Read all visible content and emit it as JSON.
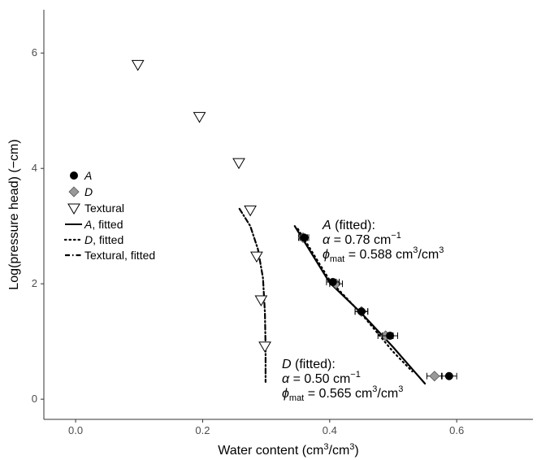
{
  "chart_data": {
    "type": "scatter",
    "title": "",
    "xlabel": {
      "prefix": "Water content (cm",
      "sup1": "3",
      "mid": "/cm",
      "sup2": "3",
      "suffix": ")"
    },
    "ylabel": "Log(pressure head) (−cm)",
    "xlim": [
      -0.05,
      0.72
    ],
    "ylim": [
      -0.35,
      6.75
    ],
    "x_ticks": [
      0.0,
      0.2,
      0.4,
      0.6
    ],
    "x_tick_labels": [
      "0.0",
      "0.2",
      "0.4",
      "0.6"
    ],
    "y_ticks": [
      0,
      2,
      4,
      6
    ],
    "y_tick_labels": [
      "0",
      "2",
      "4",
      "6"
    ],
    "grid": false,
    "legend_position": "left",
    "series": [
      {
        "name": "A",
        "marker": "circle",
        "color": "#000000",
        "x": [
          0.36,
          0.405,
          0.45,
          0.495,
          0.588
        ],
        "y": [
          2.8,
          2.03,
          1.52,
          1.1,
          0.4
        ],
        "xerr": [
          0.007,
          0.01,
          0.01,
          0.012,
          0.012
        ]
      },
      {
        "name": "D",
        "marker": "diamond",
        "color": "#999999",
        "x": [
          0.358,
          0.41,
          0.45,
          0.488,
          0.565
        ],
        "y": [
          2.8,
          2.0,
          1.52,
          1.1,
          0.4
        ],
        "xerr": [
          0.007,
          0.01,
          0.01,
          0.012,
          0.012
        ]
      },
      {
        "name": "Textural",
        "marker": "triangle-down",
        "color": "#ffffff",
        "x": [
          0.098,
          0.195,
          0.257,
          0.275,
          0.285,
          0.292,
          0.298
        ],
        "y": [
          5.8,
          4.9,
          4.1,
          3.28,
          2.48,
          1.72,
          0.92
        ]
      },
      {
        "name": "A, fitted",
        "line": "solid",
        "x": [
          0.345,
          0.4,
          0.45,
          0.5,
          0.55
        ],
        "y": [
          3.0,
          2.02,
          1.49,
          0.9,
          0.27
        ]
      },
      {
        "name": "D, fitted",
        "line": "dotted",
        "x": [
          0.35,
          0.4,
          0.45,
          0.5,
          0.53
        ],
        "y": [
          2.95,
          2.06,
          1.48,
          0.82,
          0.48
        ]
      },
      {
        "name": "Textural, fitted",
        "line": "dashdot",
        "x": [
          0.258,
          0.275,
          0.287,
          0.295,
          0.298,
          0.299,
          0.299
        ],
        "y": [
          3.3,
          3.0,
          2.6,
          2.1,
          1.5,
          0.9,
          0.3
        ]
      }
    ],
    "legend": [
      {
        "label": "A",
        "italic": true,
        "symbol": "circle"
      },
      {
        "label": "D",
        "italic": true,
        "symbol": "diamond"
      },
      {
        "label": "Textural",
        "italic": false,
        "symbol": "triangle-down"
      },
      {
        "label": "A",
        "suffix": ", fitted",
        "italic": true,
        "symbol": "solid"
      },
      {
        "label": "D",
        "suffix": ", fitted",
        "italic": true,
        "symbol": "dotted"
      },
      {
        "label": "Textural, fitted",
        "italic": false,
        "symbol": "dashdot"
      }
    ],
    "annotations": [
      {
        "name": "A",
        "head_italic": "A",
        "head_rest": " (fitted):",
        "alpha_sym": "α",
        "alpha_text": " = 0.78 cm",
        "alpha_exp": "−1",
        "phi_sym": "ϕ",
        "phi_sub": "mat",
        "phi_text": " = 0.588 cm",
        "phi_sup1": "3",
        "phi_mid": "/cm",
        "phi_sup2": "3"
      },
      {
        "name": "D",
        "head_italic": "D",
        "head_rest": " (fitted):",
        "alpha_sym": "α",
        "alpha_text": " = 0.50 cm",
        "alpha_exp": "−1",
        "phi_sym": "ϕ",
        "phi_sub": "mat",
        "phi_text": " = 0.565 cm",
        "phi_sup1": "3",
        "phi_mid": "/cm",
        "phi_sup2": "3"
      }
    ]
  }
}
